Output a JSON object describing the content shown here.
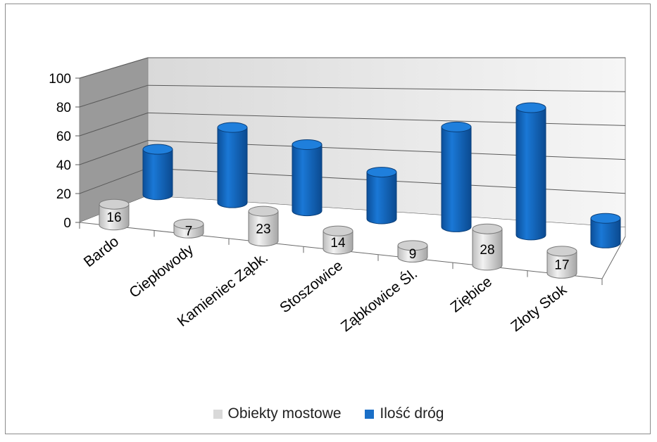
{
  "chart_data": {
    "type": "bar",
    "style": "3d-cylinder",
    "categories": [
      "Bardo",
      "Ciepłowody",
      "Kamieniec Ząbk.",
      "Stoszowice",
      "Ząbkowice Śl.",
      "Ziębice",
      "Złoty Stok"
    ],
    "series": [
      {
        "name": "Obiekty mostowe",
        "values": [
          16,
          7,
          23,
          14,
          9,
          28,
          17
        ],
        "color": "#d9d9d9",
        "data_labels": true
      },
      {
        "name": "Ilość dróg",
        "values": [
          35,
          58,
          51,
          36,
          77,
          98,
          19
        ],
        "color": "#1a6fc7",
        "data_labels": false
      }
    ],
    "yticks": [
      "0",
      "20",
      "40",
      "60",
      "80",
      "100"
    ],
    "ylim": [
      0,
      100
    ],
    "grid": true,
    "legend_position": "bottom"
  }
}
